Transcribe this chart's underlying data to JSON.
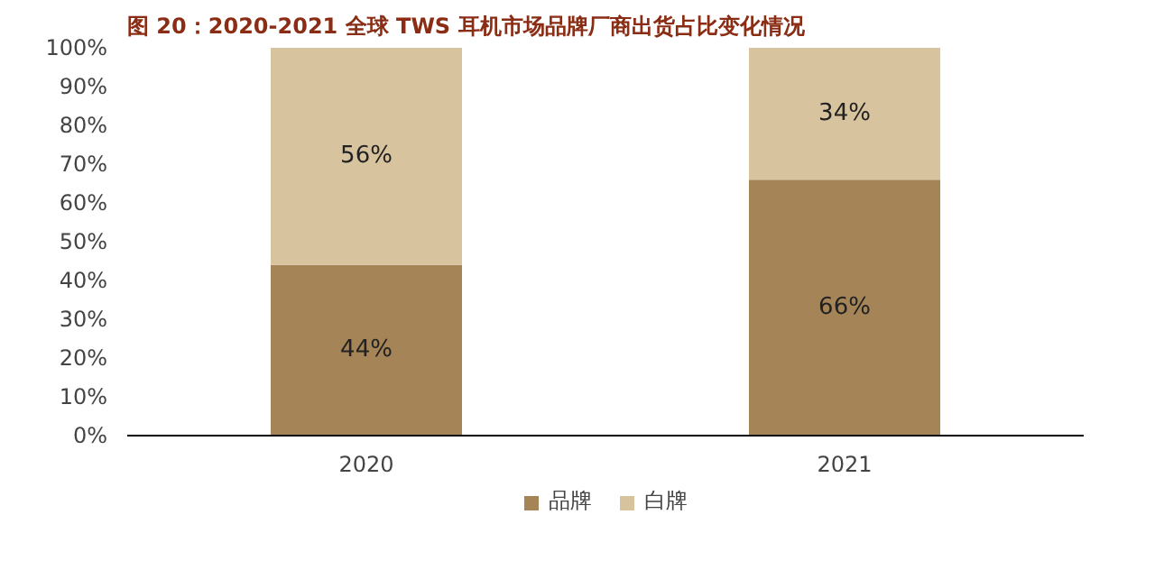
{
  "chart_data": {
    "type": "bar",
    "title": "图 20：2020-2021 全球 TWS 耳机市场品牌厂商出货占比变化情况",
    "categories": [
      "2020",
      "2021"
    ],
    "stacked": true,
    "series": [
      {
        "name": "品牌",
        "color": "#a58457",
        "values": [
          44,
          66
        ],
        "value_labels": [
          "44%",
          "66%"
        ]
      },
      {
        "name": "白牌",
        "color": "#d8c39f",
        "values": [
          56,
          34
        ],
        "value_labels": [
          "56%",
          "34%"
        ]
      }
    ],
    "ylim": [
      0,
      100
    ],
    "yticks": [
      {
        "value": 0,
        "label": "0%"
      },
      {
        "value": 10,
        "label": "10%"
      },
      {
        "value": 20,
        "label": "20%"
      },
      {
        "value": 30,
        "label": "30%"
      },
      {
        "value": 40,
        "label": "40%"
      },
      {
        "value": 50,
        "label": "50%"
      },
      {
        "value": 60,
        "label": "60%"
      },
      {
        "value": 70,
        "label": "70%"
      },
      {
        "value": 80,
        "label": "80%"
      },
      {
        "value": 90,
        "label": "90%"
      },
      {
        "value": 100,
        "label": "100%"
      }
    ],
    "grid": false,
    "legend": "bottom"
  }
}
